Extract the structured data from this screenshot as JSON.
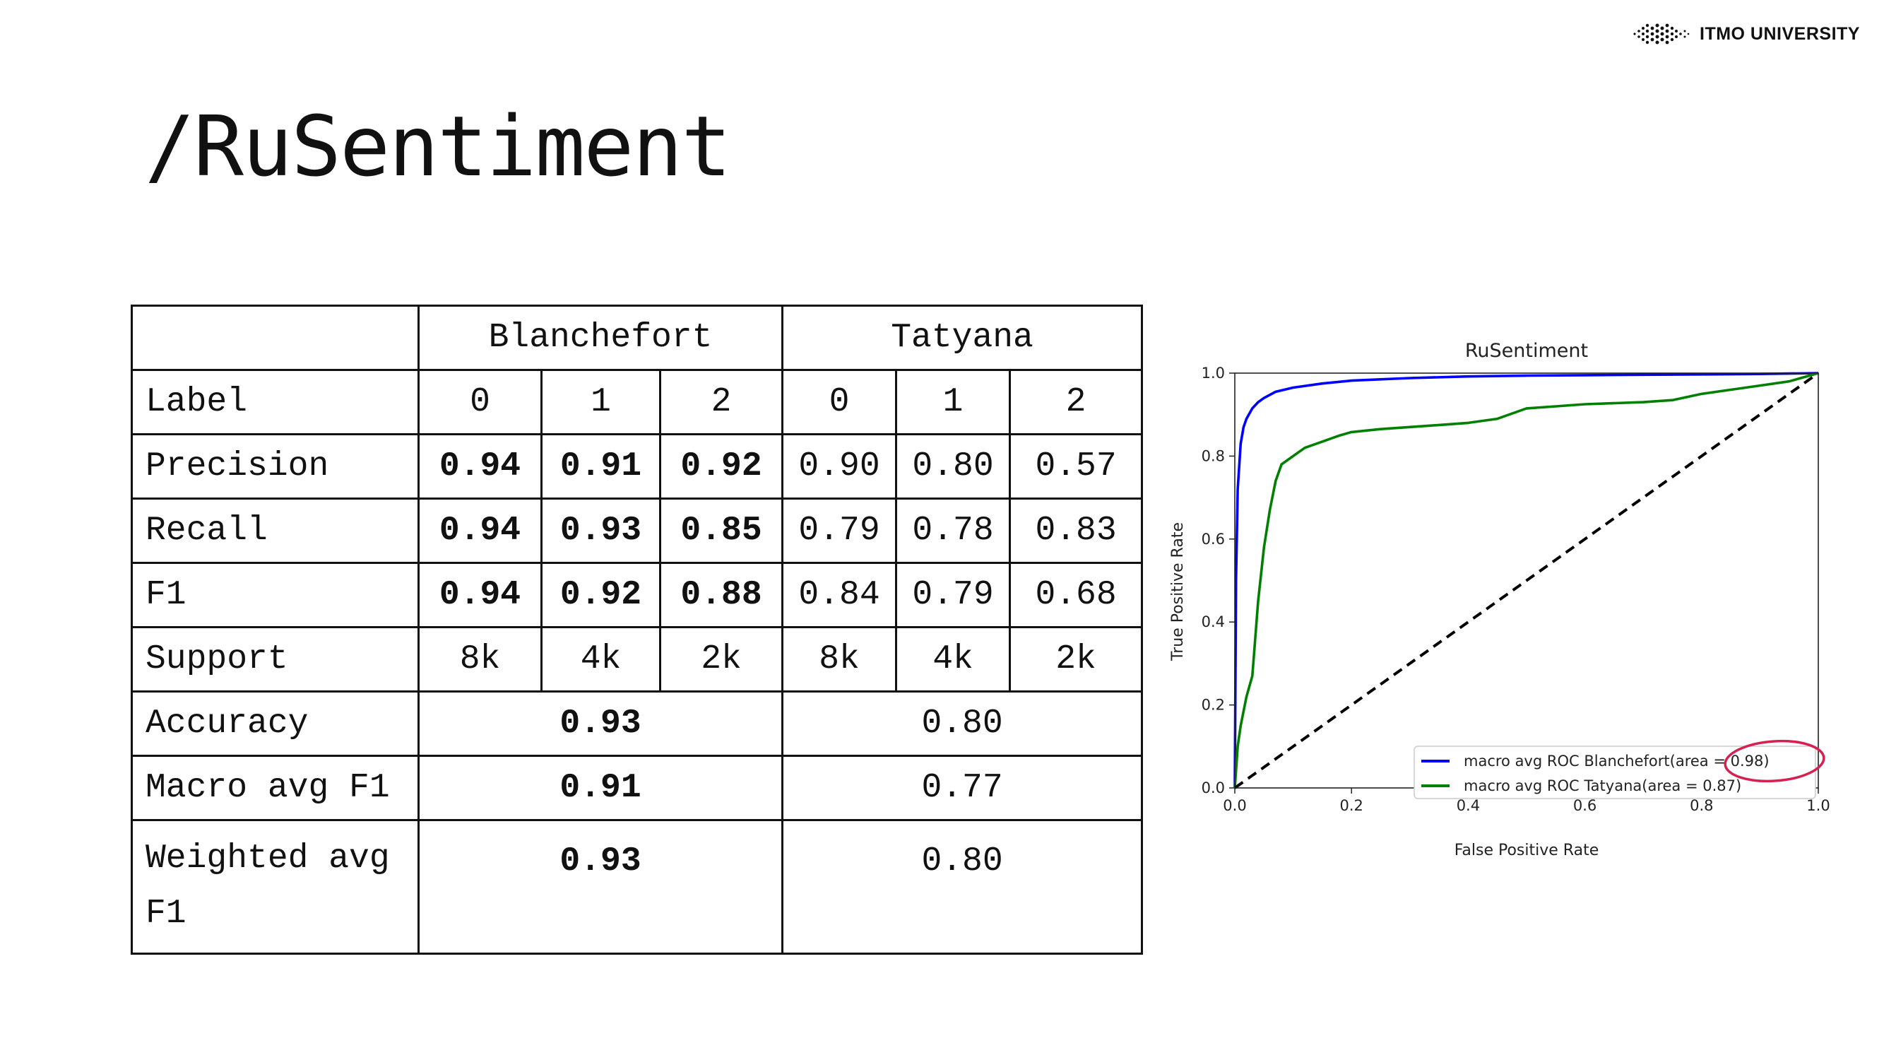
{
  "header": {
    "logo_text": "ITMO UNIVERSITY",
    "logo_icon": "itmo-dots-logo"
  },
  "slide": {
    "title": "/RuSentiment"
  },
  "table": {
    "groups": [
      "Blanchefort",
      "Tatyana"
    ],
    "label_row": {
      "label": "Label",
      "values": [
        "0",
        "1",
        "2",
        "0",
        "1",
        "2"
      ]
    },
    "rows": [
      {
        "label": "Precision",
        "values": [
          "0.94",
          "0.91",
          "0.92",
          "0.90",
          "0.80",
          "0.57"
        ]
      },
      {
        "label": "Recall",
        "values": [
          "0.94",
          "0.93",
          "0.85",
          "0.79",
          "0.78",
          "0.83"
        ]
      },
      {
        "label": "F1",
        "values": [
          "0.94",
          "0.92",
          "0.88",
          "0.84",
          "0.79",
          "0.68"
        ]
      },
      {
        "label": "Support",
        "values": [
          "8k",
          "4k",
          "2k",
          "8k",
          "4k",
          "2k"
        ]
      }
    ],
    "summary_rows": [
      {
        "label": "Accuracy",
        "values": [
          "0.93",
          "0.80"
        ]
      },
      {
        "label": "Macro avg F1",
        "values": [
          "0.91",
          "0.77"
        ]
      },
      {
        "label": "Weighted avg F1",
        "values": [
          "0.93",
          "0.80"
        ]
      }
    ]
  },
  "chart_data": {
    "type": "line",
    "title": "RuSentiment",
    "xlabel": "False Positive Rate",
    "ylabel": "True Positive Rate",
    "xlim": [
      0.0,
      1.0
    ],
    "ylim": [
      0.0,
      1.0
    ],
    "xticks": [
      "0.0",
      "0.2",
      "0.4",
      "0.6",
      "0.8",
      "1.0"
    ],
    "yticks": [
      "0.0",
      "0.2",
      "0.4",
      "0.6",
      "0.8",
      "1.0"
    ],
    "legend_position": "lower right",
    "series": [
      {
        "name": "macro avg ROC Blanchefort(area = 0.98)",
        "color": "#0000ff",
        "x": [
          0,
          0.002,
          0.005,
          0.01,
          0.015,
          0.02,
          0.03,
          0.04,
          0.05,
          0.07,
          0.1,
          0.15,
          0.2,
          0.3,
          0.4,
          0.5,
          0.6,
          0.7,
          0.8,
          0.9,
          1.0
        ],
        "y": [
          0,
          0.5,
          0.72,
          0.83,
          0.87,
          0.89,
          0.915,
          0.93,
          0.94,
          0.955,
          0.965,
          0.975,
          0.982,
          0.988,
          0.992,
          0.994,
          0.995,
          0.996,
          0.997,
          0.998,
          1.0
        ]
      },
      {
        "name": "macro avg ROC Tatyana(area = 0.87)",
        "color": "#008000",
        "x": [
          0,
          0.005,
          0.01,
          0.02,
          0.03,
          0.04,
          0.05,
          0.06,
          0.07,
          0.08,
          0.1,
          0.12,
          0.15,
          0.18,
          0.2,
          0.25,
          0.3,
          0.35,
          0.4,
          0.45,
          0.5,
          0.55,
          0.6,
          0.7,
          0.75,
          0.8,
          0.85,
          0.9,
          0.95,
          1.0
        ],
        "y": [
          0,
          0.1,
          0.15,
          0.22,
          0.27,
          0.45,
          0.58,
          0.67,
          0.74,
          0.78,
          0.8,
          0.82,
          0.835,
          0.85,
          0.858,
          0.865,
          0.87,
          0.875,
          0.88,
          0.89,
          0.915,
          0.92,
          0.925,
          0.93,
          0.935,
          0.95,
          0.96,
          0.97,
          0.98,
          1.0
        ]
      },
      {
        "name": "",
        "color": "#000000",
        "dashed": true,
        "x": [
          0,
          1
        ],
        "y": [
          0,
          1
        ]
      }
    ],
    "annotation": {
      "type": "circle",
      "target": "0.98)",
      "color": "#d62050"
    }
  }
}
